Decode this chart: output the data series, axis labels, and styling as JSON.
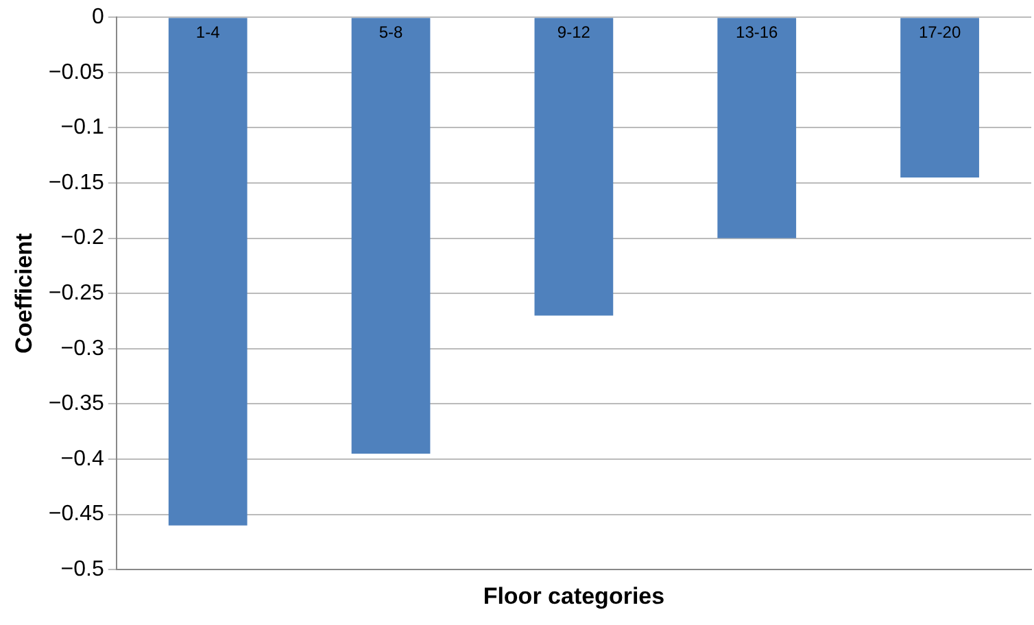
{
  "chart_data": {
    "type": "bar",
    "xlabel": "Floor categories",
    "ylabel": "Coefficient",
    "categories": [
      "1-4",
      "5-8",
      "9-12",
      "13-16",
      "17-20"
    ],
    "values": [
      -0.46,
      -0.395,
      -0.27,
      -0.2,
      -0.145
    ],
    "color": "#4f81bd",
    "ylim": [
      -0.5,
      0
    ],
    "yticks": [
      {
        "value": -0.5,
        "label": "−0.5"
      },
      {
        "value": -0.45,
        "label": "−0.45"
      },
      {
        "value": -0.4,
        "label": "−0.4"
      },
      {
        "value": -0.35,
        "label": "−0.35"
      },
      {
        "value": -0.3,
        "label": "−0.3"
      },
      {
        "value": -0.25,
        "label": "−0.25"
      },
      {
        "value": -0.2,
        "label": "−0.2"
      },
      {
        "value": -0.15,
        "label": "−0.15"
      },
      {
        "value": -0.1,
        "label": "−0.1"
      },
      {
        "value": -0.05,
        "label": "−0.05"
      },
      0
    ],
    "grid": "y",
    "legend": false
  }
}
